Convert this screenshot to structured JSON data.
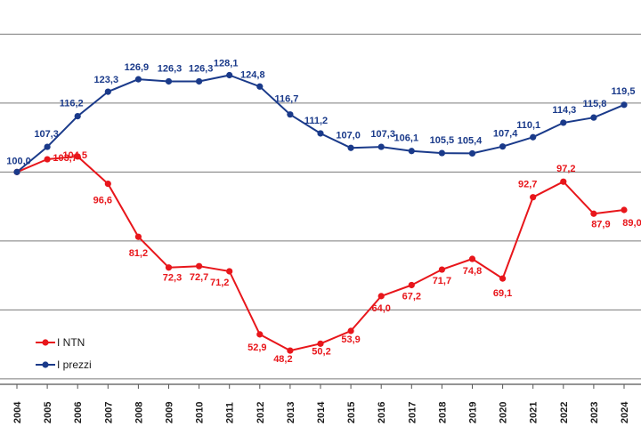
{
  "chart_data": {
    "type": "line",
    "title": "",
    "xlabel": "",
    "ylabel": "",
    "x": [
      "2004",
      "2005",
      "2006",
      "2007",
      "2008",
      "2009",
      "2010",
      "2011",
      "2012",
      "2013",
      "2014",
      "2015",
      "2016",
      "2017",
      "2018",
      "2019",
      "2020",
      "2021",
      "2022",
      "2023",
      "2024"
    ],
    "ylim": [
      20,
      145
    ],
    "gridlines": [
      40,
      60,
      80,
      100,
      120,
      140
    ],
    "legend_position": "bottom-left",
    "series": [
      {
        "name": "I NTN",
        "color": "#e8161b",
        "values": [
          100.0,
          103.7,
          104.5,
          96.6,
          81.2,
          72.3,
          72.7,
          71.2,
          52.9,
          48.2,
          50.2,
          53.9,
          64.0,
          67.2,
          71.7,
          74.8,
          69.1,
          92.7,
          97.2,
          87.9,
          89.0
        ],
        "labels": [
          "",
          "103,7",
          "104,5",
          "96,6",
          "81,2",
          "72,3",
          "72,7",
          "71,2",
          "52,9",
          "48,2",
          "50,2",
          "53,9",
          "64,0",
          "67,2",
          "71,7",
          "74,8",
          "69,1",
          "92,7",
          "97,2",
          "87,9",
          "89,0"
        ]
      },
      {
        "name": "I prezzi",
        "color": "#1a3a8a",
        "values": [
          100.0,
          107.3,
          116.2,
          123.3,
          126.9,
          126.3,
          126.3,
          128.1,
          124.8,
          116.7,
          111.2,
          107.0,
          107.3,
          106.1,
          105.5,
          105.4,
          107.4,
          110.1,
          114.3,
          115.8,
          119.5
        ],
        "labels": [
          "100,0",
          "107,3",
          "116,2",
          "123,3",
          "126,9",
          "126,3",
          "126,3",
          "128,1",
          "124,8",
          "116,7",
          "111,2",
          "107,0",
          "107,3",
          "106,1",
          "105,5",
          "105,4",
          "107,4",
          "110,1",
          "114,3",
          "115,8",
          "119,5"
        ]
      }
    ]
  }
}
